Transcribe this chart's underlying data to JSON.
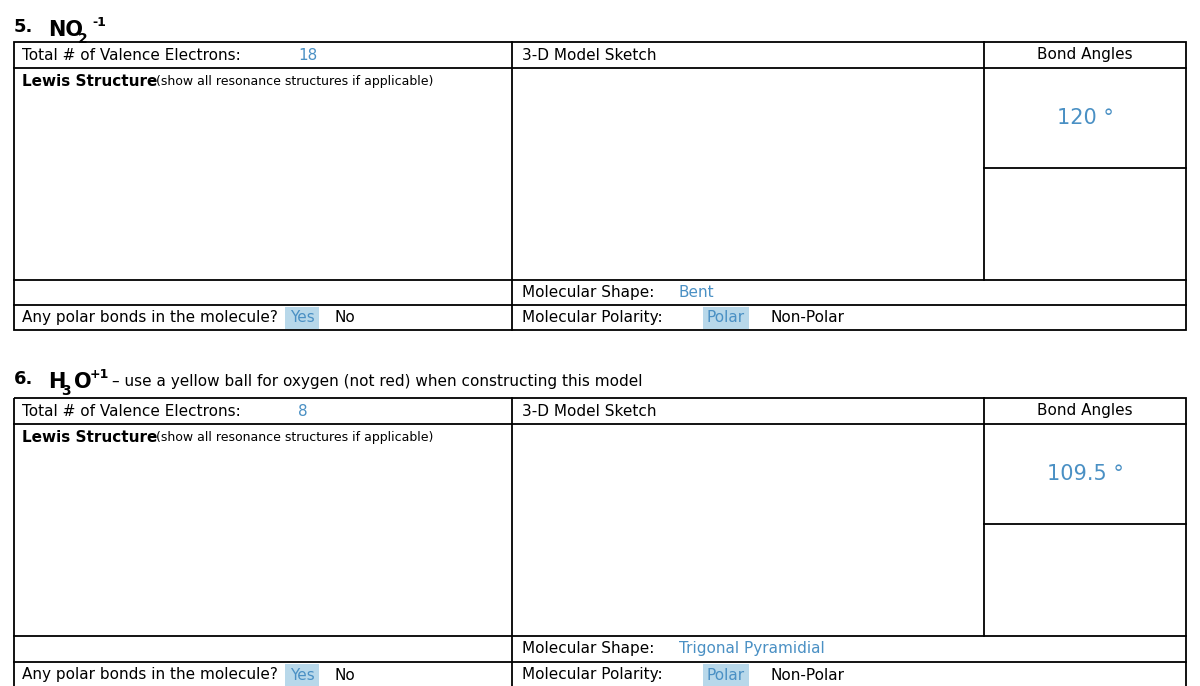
{
  "bg_color": "#ffffff",
  "border_color": "#000000",
  "blue_color": "#4a90c4",
  "highlight_color": "#b8d8ea",
  "section1": {
    "number": "5.",
    "formula_NO": "NO",
    "formula_sub2": "2",
    "formula_sup_neg1": "-1",
    "valence_label": "Total # of Valence Electrons:",
    "valence_electrons": "18",
    "lewis_label": "Lewis Structure",
    "lewis_sub": " (show all resonance structures if applicable)",
    "sketch_label": "3-D Model Sketch",
    "bond_angles_label": "Bond Angles",
    "bond_angle_value": "120 °",
    "mol_shape_label": "Molecular Shape:",
    "mol_shape_value": "Bent",
    "mol_polarity_label": "Molecular Polarity:",
    "polar_label": "Polar",
    "nonpolar_label": "Non-Polar",
    "polar_bonds_label": "Any polar bonds in the molecule?",
    "yes_label": "Yes",
    "no_label": "No"
  },
  "section2": {
    "number": "6.",
    "formula_H": "H",
    "formula_sub3": "3",
    "formula_O": "O",
    "formula_sup_p1": "+1",
    "note": "– use a yellow ball for oxygen (not red) when constructing this model",
    "valence_label": "Total # of Valence Electrons:",
    "valence_electrons": "8",
    "lewis_label": "Lewis Structure",
    "lewis_sub": " (show all resonance structures if applicable)",
    "sketch_label": "3-D Model Sketch",
    "bond_angles_label": "Bond Angles",
    "bond_angle_value": "109.5 °",
    "mol_shape_label": "Molecular Shape:",
    "mol_shape_value": "Trigonal Pyramidial",
    "mol_polarity_label": "Molecular Polarity:",
    "polar_label": "Polar",
    "nonpolar_label": "Non-Polar",
    "polar_bonds_label": "Any polar bonds in the molecule?",
    "yes_label": "Yes",
    "no_label": "No"
  }
}
